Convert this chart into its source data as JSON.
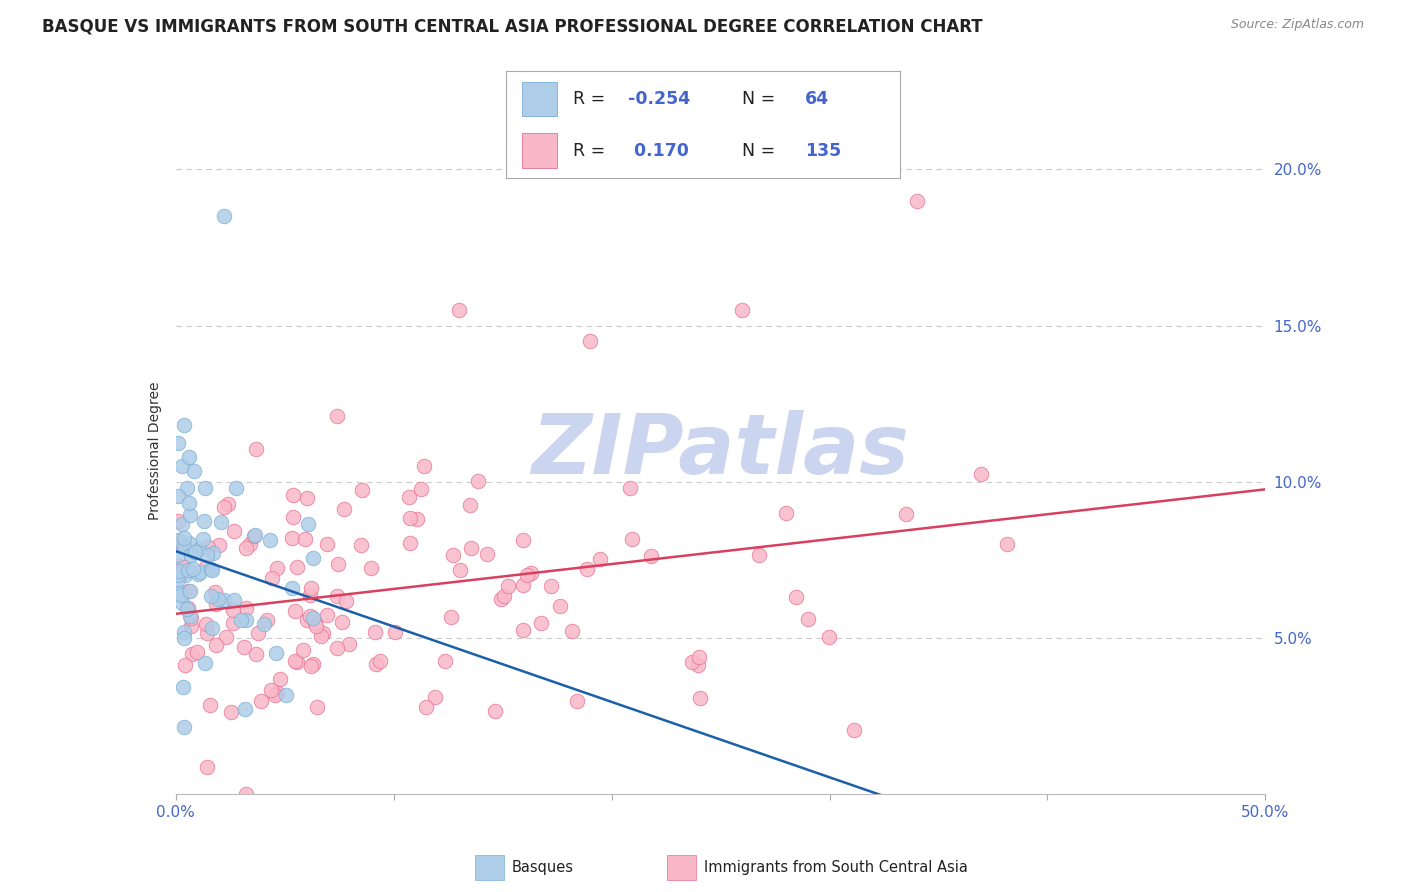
{
  "title": "BASQUE VS IMMIGRANTS FROM SOUTH CENTRAL ASIA PROFESSIONAL DEGREE CORRELATION CHART",
  "source_text": "Source: ZipAtlas.com",
  "ylabel": "Professional Degree",
  "x_min": 0.0,
  "x_max": 0.5,
  "y_min": 0.0,
  "y_max": 0.22,
  "y_ticks_right": [
    0.05,
    0.1,
    0.15,
    0.2
  ],
  "y_tick_labels_right": [
    "5.0%",
    "10.0%",
    "15.0%",
    "20.0%"
  ],
  "watermark": "ZIPatlas",
  "series": [
    {
      "name": "Basques",
      "color": "#aecde8",
      "edge_color": "#7bafd4",
      "R": -0.254,
      "N": 64,
      "trend_color": "#1a5fa8"
    },
    {
      "name": "Immigrants from South Central Asia",
      "color": "#f9b8c8",
      "edge_color": "#e87090",
      "R": 0.17,
      "N": 135,
      "trend_color": "#d94060"
    }
  ],
  "title_fontsize": 12,
  "axis_label_fontsize": 10,
  "tick_fontsize": 11,
  "background_color": "#ffffff",
  "grid_color": "#cccccc",
  "title_color": "#222222",
  "axis_color": "#4466cc",
  "watermark_color": "#ccd5ef",
  "watermark_fontsize": 60,
  "legend_R_color": "#222222",
  "legend_N_color": "#4466cc",
  "legend_val_color": "#4466cc"
}
